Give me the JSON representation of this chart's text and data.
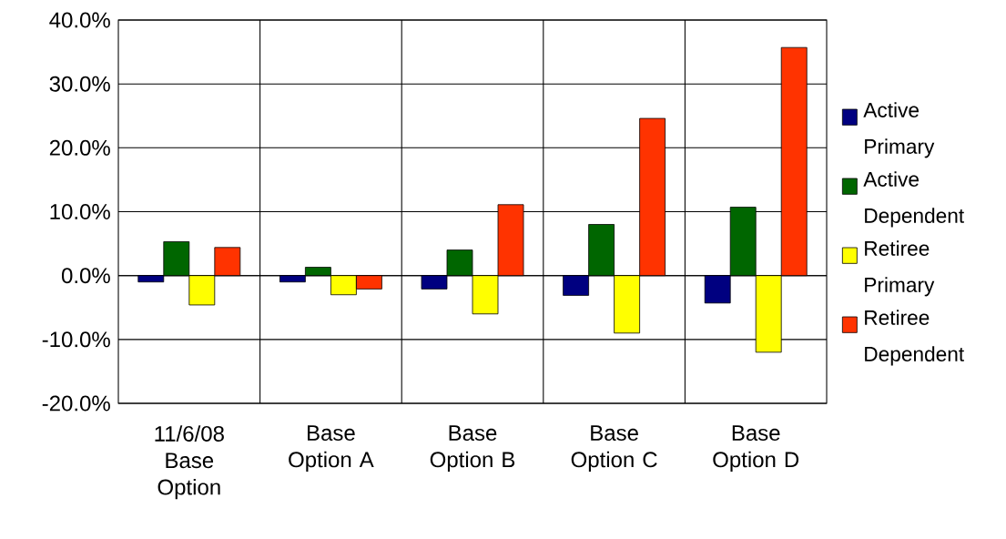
{
  "chart_data": {
    "type": "bar",
    "categories": [
      "11/6/08 Base Option",
      "Base Option A",
      "Base Option B",
      "Base Option C",
      "Base Option D"
    ],
    "series": [
      {
        "name": "Active Primary",
        "color": "#000080",
        "values": [
          -1.0,
          -1.0,
          -2.1,
          -3.1,
          -4.3
        ]
      },
      {
        "name": "Active Dependent",
        "color": "#006600",
        "values": [
          5.3,
          1.3,
          4.0,
          8.0,
          10.7
        ]
      },
      {
        "name": "Retiree Primary",
        "color": "#ffff00",
        "values": [
          -4.6,
          -3.0,
          -6.0,
          -9.0,
          -12.0
        ]
      },
      {
        "name": "Retiree Dependent",
        "color": "#ff3300",
        "values": [
          4.4,
          -2.1,
          11.1,
          24.6,
          35.7
        ]
      }
    ],
    "ylim": [
      -20,
      40
    ],
    "yticks": [
      {
        "value": -20,
        "label": "-20.0%"
      },
      {
        "value": -10,
        "label": "-10.0%"
      },
      {
        "value": 0,
        "label": "0.0%"
      },
      {
        "value": 10,
        "label": "10.0%"
      },
      {
        "value": 20,
        "label": "20.0%"
      },
      {
        "value": 30,
        "label": "30.0%"
      },
      {
        "value": 40,
        "label": "40.0%"
      }
    ],
    "grid": true,
    "legend": "right"
  }
}
